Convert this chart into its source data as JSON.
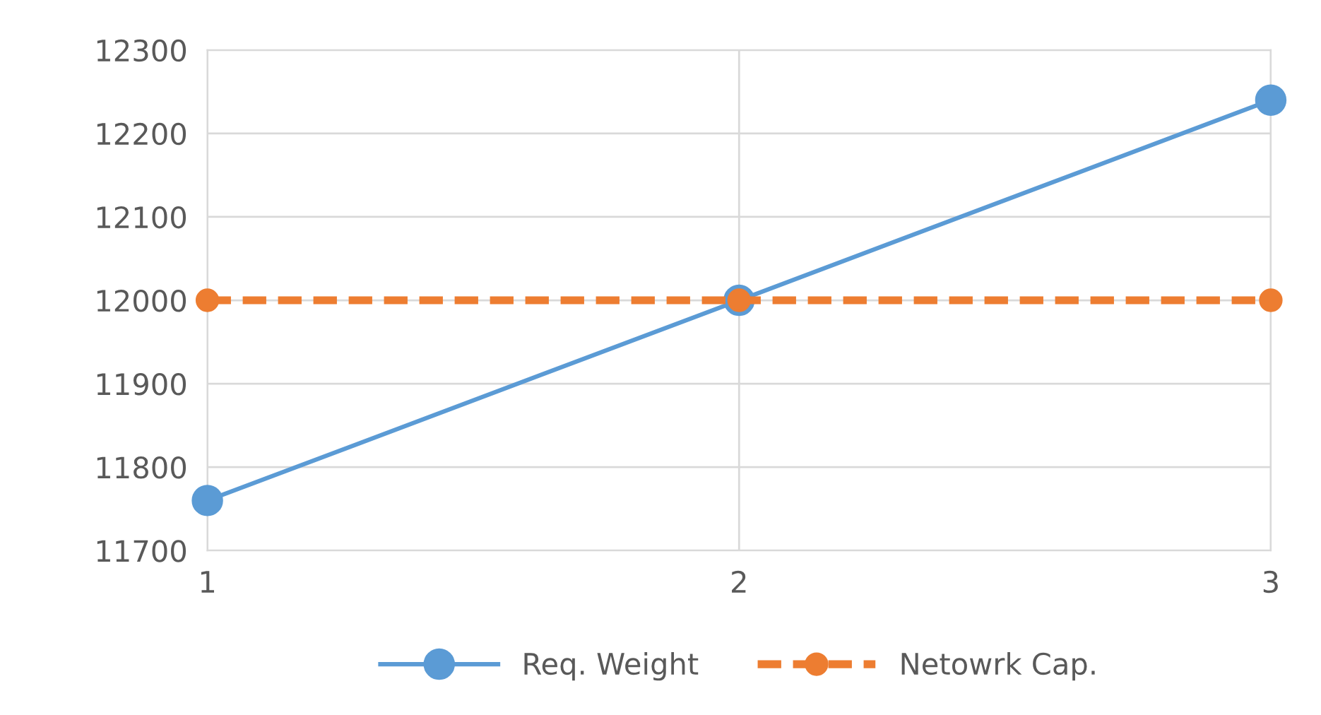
{
  "chart_data": {
    "type": "line",
    "x": [
      1,
      2,
      3
    ],
    "series": [
      {
        "name": "Req. Weight",
        "color": "#5b9bd5",
        "values": [
          11760,
          12000,
          12240
        ],
        "line_style": "solid"
      },
      {
        "name": "Netowrk Cap.",
        "color": "#ed7d31",
        "values": [
          12000,
          12000,
          12000
        ],
        "line_style": "dashed"
      }
    ],
    "xlim": [
      1,
      3
    ],
    "xticks": [
      1,
      2,
      3
    ],
    "ylim": [
      11700,
      12300
    ],
    "yticks": [
      11700,
      11800,
      11900,
      12000,
      12100,
      12200,
      12300
    ],
    "grid": true,
    "legend": "bottom",
    "marker": "circle"
  }
}
